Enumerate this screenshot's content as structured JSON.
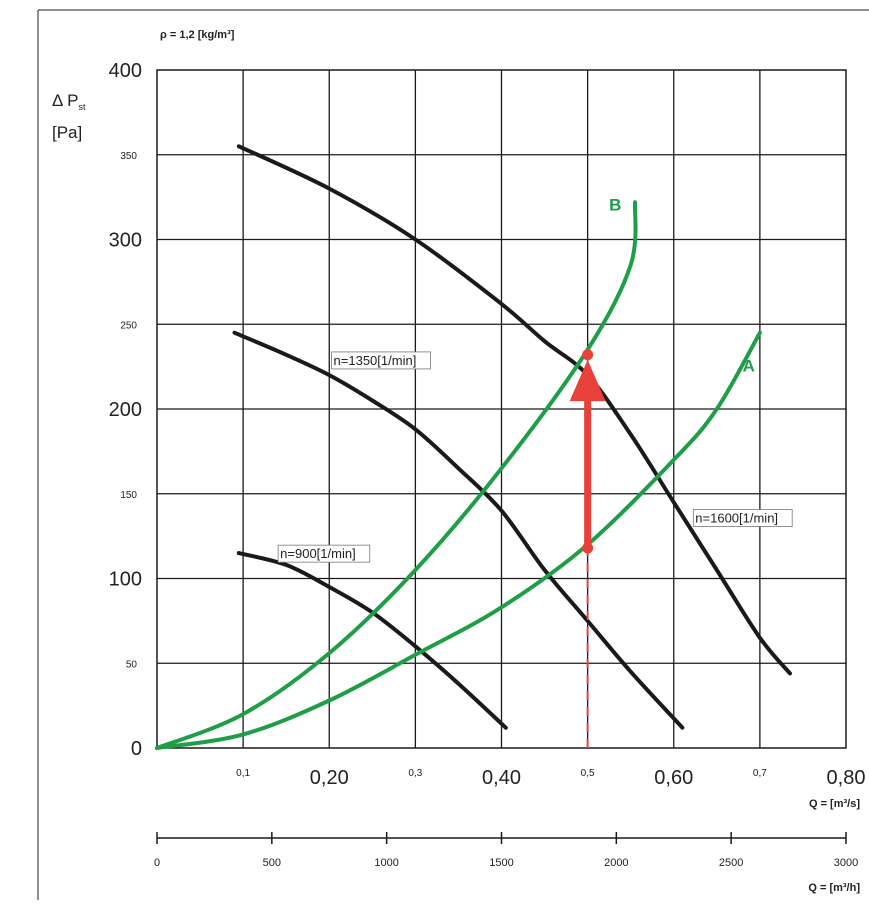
{
  "chart_data": {
    "type": "line",
    "title": "",
    "density_label": "ρ = 1,2 [kg/m³]",
    "ylabel_line1": "Δ P",
    "ylabel_sub": "st",
    "ylabel_line2": "[Pa]",
    "xlabel": "Q = [m³/s]",
    "xlabel2": "Q = [m³/h]",
    "xlim": [
      0,
      0.8
    ],
    "ylim": [
      0,
      400
    ],
    "grid": true,
    "y_ticks_major": [
      {
        "v": 0,
        "label": "0"
      },
      {
        "v": 100,
        "label": "100"
      },
      {
        "v": 200,
        "label": "200"
      },
      {
        "v": 300,
        "label": "300"
      },
      {
        "v": 400,
        "label": "400"
      }
    ],
    "y_ticks_minor": [
      {
        "v": 50,
        "label": "50"
      },
      {
        "v": 150,
        "label": "150"
      },
      {
        "v": 250,
        "label": "250"
      },
      {
        "v": 350,
        "label": "350"
      }
    ],
    "x_ticks_major": [
      {
        "v": 0.2,
        "label": "0,20"
      },
      {
        "v": 0.4,
        "label": "0,40"
      },
      {
        "v": 0.6,
        "label": "0,60"
      },
      {
        "v": 0.8,
        "label": "0,80"
      }
    ],
    "x_ticks_minor": [
      {
        "v": 0.1,
        "label": "0,1"
      },
      {
        "v": 0.3,
        "label": "0,3"
      },
      {
        "v": 0.5,
        "label": "0,5"
      },
      {
        "v": 0.7,
        "label": "0,7"
      }
    ],
    "h_axis_max": 3000,
    "h_ticks": [
      {
        "v": 0,
        "label": "0"
      },
      {
        "v": 500,
        "label": "500"
      },
      {
        "v": 1000,
        "label": "1000"
      },
      {
        "v": 1500,
        "label": "1500"
      },
      {
        "v": 2000,
        "label": "2000"
      },
      {
        "v": 2500,
        "label": "2500"
      },
      {
        "v": 3000,
        "label": "3000"
      }
    ],
    "fan_curves": [
      {
        "label": "n=900[1/min]",
        "color": "#1a1a1a",
        "label_at": [
          0.143,
          112
        ],
        "points": [
          [
            0.095,
            115
          ],
          [
            0.15,
            108
          ],
          [
            0.2,
            95
          ],
          [
            0.25,
            80
          ],
          [
            0.3,
            60
          ],
          [
            0.35,
            38
          ],
          [
            0.405,
            12
          ]
        ]
      },
      {
        "label": "n=1350[1/min]",
        "color": "#1a1a1a",
        "label_at": [
          0.205,
          226
        ],
        "points": [
          [
            0.09,
            245
          ],
          [
            0.15,
            232
          ],
          [
            0.2,
            220
          ],
          [
            0.25,
            205
          ],
          [
            0.3,
            188
          ],
          [
            0.35,
            165
          ],
          [
            0.4,
            140
          ],
          [
            0.45,
            105
          ],
          [
            0.5,
            75
          ],
          [
            0.55,
            45
          ],
          [
            0.61,
            12
          ]
        ]
      },
      {
        "label": "n=1600[1/min]",
        "color": "#1a1a1a",
        "label_at": [
          0.625,
          133
        ],
        "points": [
          [
            0.095,
            355
          ],
          [
            0.2,
            330
          ],
          [
            0.3,
            300
          ],
          [
            0.4,
            262
          ],
          [
            0.45,
            240
          ],
          [
            0.5,
            220
          ],
          [
            0.55,
            185
          ],
          [
            0.6,
            145
          ],
          [
            0.65,
            105
          ],
          [
            0.7,
            65
          ],
          [
            0.735,
            44
          ]
        ]
      }
    ],
    "system_curves": [
      {
        "label": "B",
        "color": "#1e9e46",
        "label_at": [
          0.525,
          317
        ],
        "points": [
          [
            0.0,
            0
          ],
          [
            0.1,
            20
          ],
          [
            0.2,
            56
          ],
          [
            0.3,
            105
          ],
          [
            0.4,
            165
          ],
          [
            0.5,
            235
          ],
          [
            0.55,
            285
          ],
          [
            0.555,
            322
          ]
        ]
      },
      {
        "label": "A",
        "color": "#1e9e46",
        "label_at": [
          0.68,
          222
        ],
        "points": [
          [
            0.0,
            0
          ],
          [
            0.1,
            8
          ],
          [
            0.2,
            28
          ],
          [
            0.3,
            55
          ],
          [
            0.4,
            83
          ],
          [
            0.5,
            120
          ],
          [
            0.6,
            170
          ],
          [
            0.65,
            200
          ],
          [
            0.7,
            245
          ]
        ]
      }
    ],
    "operating_points": [
      {
        "x": 0.5,
        "y": 118,
        "color": "#e8403a"
      },
      {
        "x": 0.5,
        "y": 232,
        "color": "#e8403a"
      }
    ],
    "arrow": {
      "x": 0.5,
      "from": 118,
      "to": 207,
      "color": "#e8403a"
    },
    "dashed_line": {
      "x": 0.5,
      "from": 0,
      "to": 118,
      "color": "#e8403a"
    }
  }
}
